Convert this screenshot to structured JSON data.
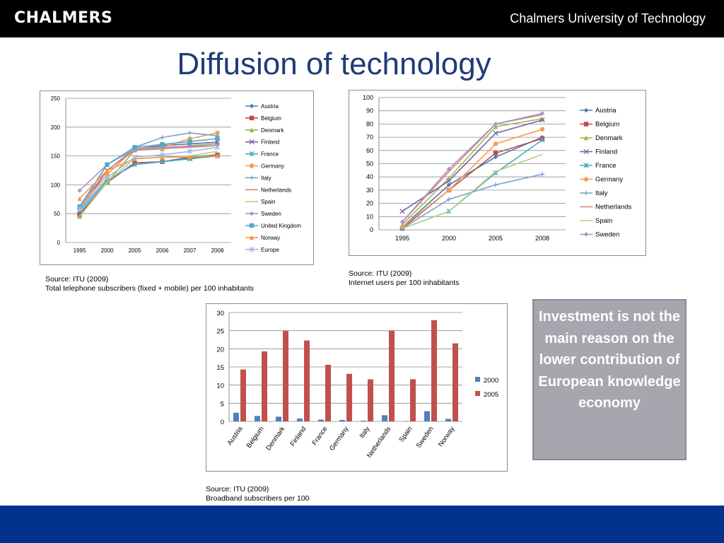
{
  "header": {
    "logo": "CHALMERS",
    "university": "Chalmers University of Technology"
  },
  "title": "Diffusion of technology",
  "callout": "Investment is not the main reason on the lower contribution of European knowledge economy",
  "colors": {
    "Austria": "#4a7ebb",
    "Belgium": "#be4b48",
    "Denmark": "#98b954",
    "Finland": "#7d60a0",
    "France": "#46aac4",
    "Germany": "#f59d56",
    "Italy": "#7c9fd2",
    "Netherlands": "#d9827f",
    "Spain": "#b3d27f",
    "Sweden": "#a694c6",
    "United Kingdom": "#4bacc6",
    "Norway": "#f79646",
    "Europe": "#a5b6e3",
    "bar2000": "#4f81bd",
    "bar2005": "#c0504d"
  },
  "sources": {
    "telephone": [
      "Source: ITU (2009)",
      "Total telephone subscribers (fixed + mobile) per 100 inhabitants"
    ],
    "internet": [
      "Source: ITU (2009)",
      "Internet users per 100 inhabitants"
    ],
    "broadband": [
      "Source: ITU (2009)",
      "Broadband subscribers per 100"
    ]
  },
  "chart_data": [
    {
      "id": "telephone",
      "type": "line",
      "title": "",
      "x": [
        "1995",
        "2000",
        "2005",
        "2006",
        "2007",
        "2008"
      ],
      "ylim": [
        0,
        250
      ],
      "yticks": [
        0,
        50,
        100,
        150,
        200,
        250
      ],
      "series": [
        {
          "name": "Austria",
          "marker": "diamond",
          "values": [
            50,
            105,
            138,
            140,
            148,
            152
          ]
        },
        {
          "name": "Belgium",
          "marker": "square",
          "values": [
            48,
            104,
            138,
            140,
            146,
            152
          ]
        },
        {
          "name": "Denmark",
          "marker": "triangle",
          "values": [
            45,
            104,
            160,
            162,
            168,
            171
          ]
        },
        {
          "name": "Finland",
          "marker": "x",
          "values": [
            55,
            125,
            162,
            168,
            171,
            174
          ]
        },
        {
          "name": "France",
          "marker": "star",
          "values": [
            55,
            108,
            135,
            140,
            145,
            150
          ]
        },
        {
          "name": "Germany",
          "marker": "circle",
          "values": [
            60,
            118,
            163,
            165,
            180,
            190
          ]
        },
        {
          "name": "Italy",
          "marker": "plus",
          "values": [
            60,
            135,
            165,
            182,
            190,
            185
          ]
        },
        {
          "name": "Netherlands",
          "marker": "none",
          "values": [
            62,
            125,
            160,
            163,
            165,
            168
          ]
        },
        {
          "name": "Spain",
          "marker": "none",
          "values": [
            45,
            105,
            145,
            148,
            150,
            158
          ]
        },
        {
          "name": "Sweden",
          "marker": "diamond",
          "values": [
            90,
            135,
            162,
            165,
            167,
            168
          ]
        },
        {
          "name": "United Kingdom",
          "marker": "square",
          "values": [
            62,
            135,
            165,
            170,
            175,
            180
          ]
        },
        {
          "name": "Norway",
          "marker": "triangle",
          "values": [
            76,
            125,
            145,
            148,
            148,
            150
          ]
        },
        {
          "name": "Europe",
          "marker": "star",
          "values": [
            58,
            112,
            148,
            152,
            158,
            165
          ]
        }
      ]
    },
    {
      "id": "internet",
      "type": "line",
      "title": "",
      "x": [
        "1995",
        "2000",
        "2005",
        "2008"
      ],
      "ylim": [
        0,
        100
      ],
      "yticks": [
        0,
        10,
        20,
        30,
        40,
        50,
        60,
        70,
        80,
        90,
        100
      ],
      "series": [
        {
          "name": "Austria",
          "marker": "diamond",
          "values": [
            2,
            34,
            55,
            70
          ]
        },
        {
          "name": "Belgium",
          "marker": "square",
          "values": [
            1,
            30,
            58,
            69
          ]
        },
        {
          "name": "Denmark",
          "marker": "triangle",
          "values": [
            4,
            39,
            78,
            84
          ]
        },
        {
          "name": "Finland",
          "marker": "x",
          "values": [
            14,
            37,
            73,
            83
          ]
        },
        {
          "name": "France",
          "marker": "star",
          "values": [
            1,
            14,
            43,
            68
          ]
        },
        {
          "name": "Germany",
          "marker": "circle",
          "values": [
            2,
            30,
            65,
            76
          ]
        },
        {
          "name": "Italy",
          "marker": "plus",
          "values": [
            1,
            23,
            34,
            42
          ]
        },
        {
          "name": "Netherlands",
          "marker": "none",
          "values": [
            6,
            44,
            80,
            87
          ]
        },
        {
          "name": "Spain",
          "marker": "none",
          "values": [
            1,
            14,
            44,
            57
          ]
        },
        {
          "name": "Sweden",
          "marker": "diamond",
          "values": [
            6,
            46,
            80,
            88
          ]
        }
      ]
    },
    {
      "id": "broadband",
      "type": "bar",
      "title": "",
      "categories": [
        "Austria",
        "Belgium",
        "Denmark",
        "Finland",
        "France",
        "Germany",
        "Italy",
        "Netherlands",
        "Spain",
        "Sweden",
        "Norway"
      ],
      "ylim": [
        0,
        30
      ],
      "yticks": [
        0,
        5,
        10,
        15,
        20,
        25,
        30
      ],
      "series": [
        {
          "name": "2000",
          "values": [
            2.4,
            1.5,
            1.3,
            0.8,
            0.5,
            0.4,
            0.2,
            1.7,
            0.1,
            2.8,
            0.7
          ]
        },
        {
          "name": "2005",
          "values": [
            14.3,
            19.3,
            24.9,
            22.3,
            15.6,
            13.1,
            11.6,
            25.0,
            11.6,
            27.9,
            21.5
          ]
        }
      ]
    }
  ]
}
